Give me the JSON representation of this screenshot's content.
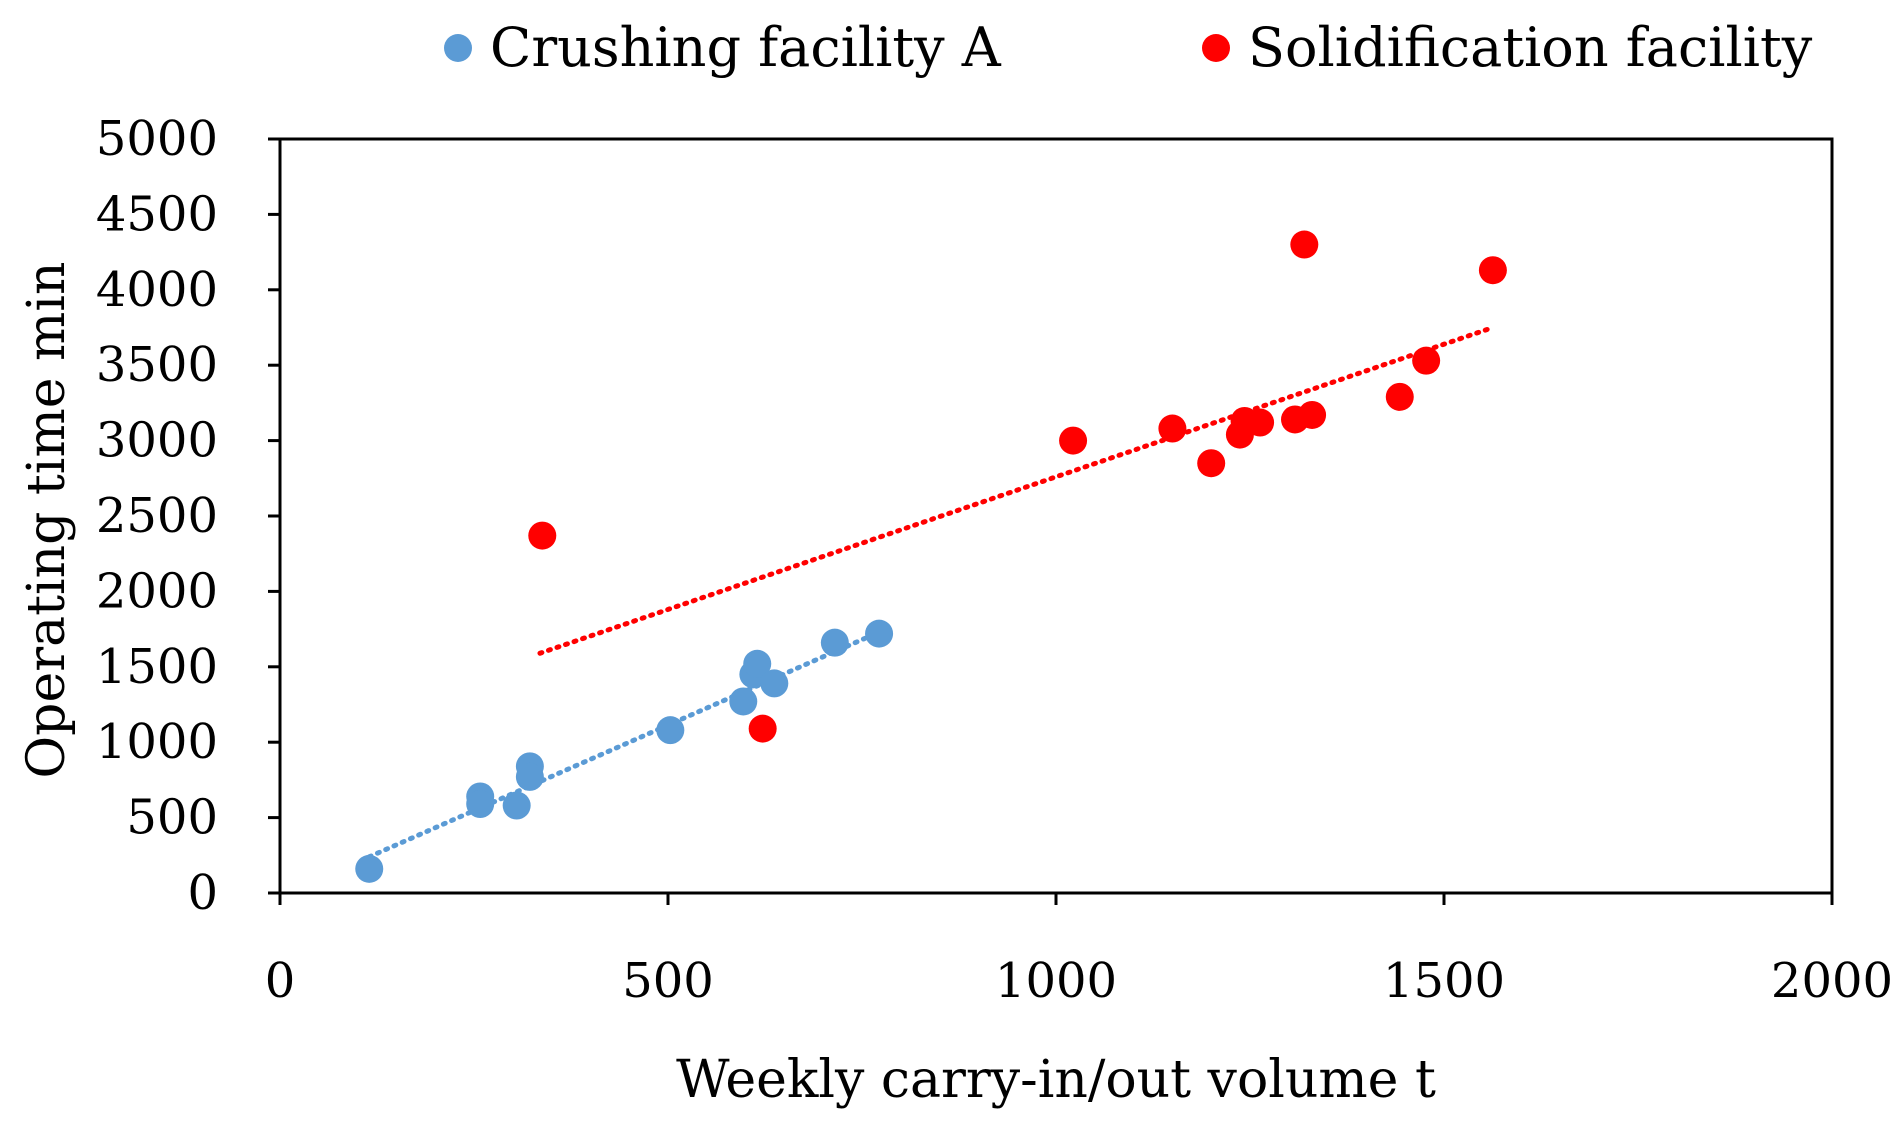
{
  "chart_data": {
    "type": "scatter",
    "title": "",
    "xlabel": "Weekly carry-in/out volume  t",
    "ylabel": "Operating time  min",
    "xlim": [
      0,
      2000
    ],
    "ylim": [
      0,
      5000
    ],
    "xticks": [
      0,
      500,
      1000,
      1500,
      2000
    ],
    "yticks": [
      0,
      500,
      1000,
      1500,
      2000,
      2500,
      3000,
      3500,
      4000,
      4500,
      5000
    ],
    "grid": false,
    "legend_position": "top",
    "series": [
      {
        "name": "Crushing facility A",
        "color": "#5b9bd5",
        "points": [
          [
            115,
            160
          ],
          [
            258,
            640
          ],
          [
            258,
            590
          ],
          [
            305,
            580
          ],
          [
            322,
            840
          ],
          [
            322,
            770
          ],
          [
            503,
            1080
          ],
          [
            597,
            1270
          ],
          [
            610,
            1450
          ],
          [
            615,
            1520
          ],
          [
            637,
            1390
          ],
          [
            715,
            1660
          ],
          [
            772,
            1720
          ]
        ],
        "trendline": {
          "style": "dotted",
          "x": [
            115,
            772
          ],
          "y": [
            240,
            1730
          ]
        }
      },
      {
        "name": "Solidification facility",
        "color": "#ff0000",
        "points": [
          [
            338,
            2370
          ],
          [
            622,
            1090
          ],
          [
            1022,
            3000
          ],
          [
            1150,
            3080
          ],
          [
            1200,
            2850
          ],
          [
            1237,
            3040
          ],
          [
            1243,
            3130
          ],
          [
            1263,
            3120
          ],
          [
            1308,
            3140
          ],
          [
            1320,
            4300
          ],
          [
            1330,
            3170
          ],
          [
            1443,
            3290
          ],
          [
            1477,
            3530
          ],
          [
            1563,
            4130
          ]
        ],
        "trendline": {
          "style": "dotted",
          "x": [
            335,
            1563
          ],
          "y": [
            1590,
            3750
          ]
        }
      }
    ]
  }
}
